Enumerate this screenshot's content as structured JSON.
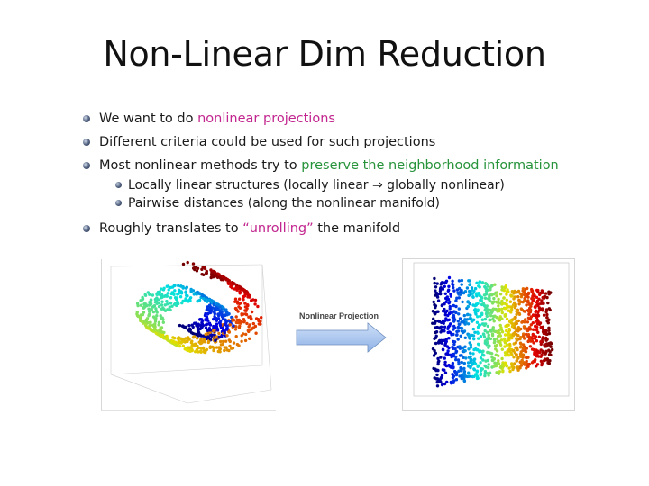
{
  "slide": {
    "title": "Non-Linear Dim Reduction",
    "bullets": [
      {
        "text": "We want to do ",
        "highlight": "nonlinear projections",
        "highlight_color": "#c2268f",
        "after": ""
      },
      {
        "text": "Different criteria could be used for such projections"
      },
      {
        "text": "Most nonlinear methods try to ",
        "highlight": "preserve the neighborhood information",
        "highlight_color": "#27933a",
        "after": ""
      },
      {
        "text": "Locally linear structures (locally linear ⇒ globally nonlinear)",
        "level": 2
      },
      {
        "text": "Pairwise distances (along the nonlinear manifold)",
        "level": 2
      },
      {
        "text": "Roughly translates to ",
        "highlight": "“unrolling”",
        "highlight_color": "#c2268f",
        "after": " the manifold"
      }
    ]
  },
  "figure": {
    "arrow_label": "Nonlinear Projection",
    "left_icon": "swiss-roll-3d-scatter",
    "right_icon": "unrolled-2d-scatter",
    "arrow_fill": "#a8c4ee"
  }
}
